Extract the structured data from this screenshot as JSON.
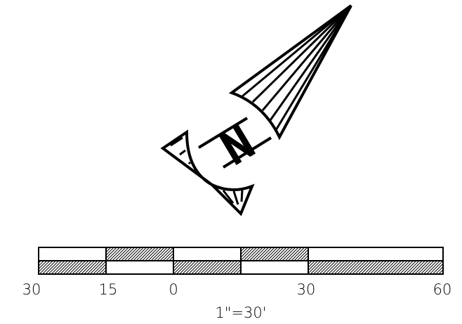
{
  "north_arrow": {
    "letter": "N",
    "icon": "north-arrow-icon"
  },
  "scale_bar": {
    "ticks": [
      "30",
      "15",
      "0",
      "30",
      "60"
    ],
    "ratio_label": "1\"=30'"
  },
  "colors": {
    "ink": "#000000",
    "paper": "#ffffff"
  }
}
